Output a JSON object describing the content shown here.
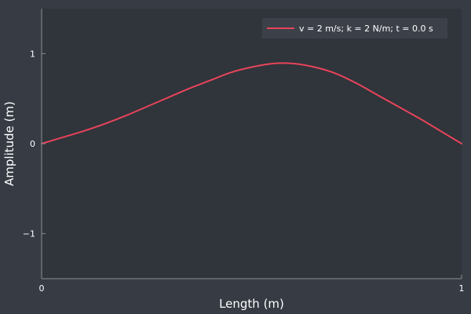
{
  "colors": {
    "figure_bg": "#363b44",
    "plot_bg": "#30343b",
    "axis": "#8c8f95",
    "text": "#ffffff",
    "series": "#e8445a",
    "legend_bg": "#3c4049"
  },
  "chart_data": {
    "type": "line",
    "xlabel": "Length (m)",
    "ylabel": "Amplitude (m)",
    "xlim": [
      0,
      1
    ],
    "ylim": [
      -1.5,
      1.5
    ],
    "xticks": [
      0,
      1
    ],
    "xtick_labels": [
      "0",
      "1"
    ],
    "yticks": [
      -1,
      0,
      1
    ],
    "ytick_labels": [
      "−1",
      "0",
      "1"
    ],
    "grid": false,
    "legend_position": "top-right",
    "series": [
      {
        "name": "v = 2 m/s; k = 2 N/m; t = 0.0 s",
        "color": "#e8445a",
        "x": [
          0,
          0.05,
          0.1,
          0.15,
          0.2,
          0.25,
          0.3,
          0.35,
          0.4,
          0.45,
          0.5,
          0.55,
          0.6,
          0.65,
          0.7,
          0.75,
          0.8,
          0.85,
          0.9,
          0.95,
          1.0
        ],
        "y": [
          0,
          0.07,
          0.14,
          0.22,
          0.31,
          0.41,
          0.51,
          0.61,
          0.7,
          0.79,
          0.85,
          0.89,
          0.89,
          0.85,
          0.78,
          0.67,
          0.54,
          0.41,
          0.28,
          0.14,
          0
        ]
      }
    ]
  }
}
